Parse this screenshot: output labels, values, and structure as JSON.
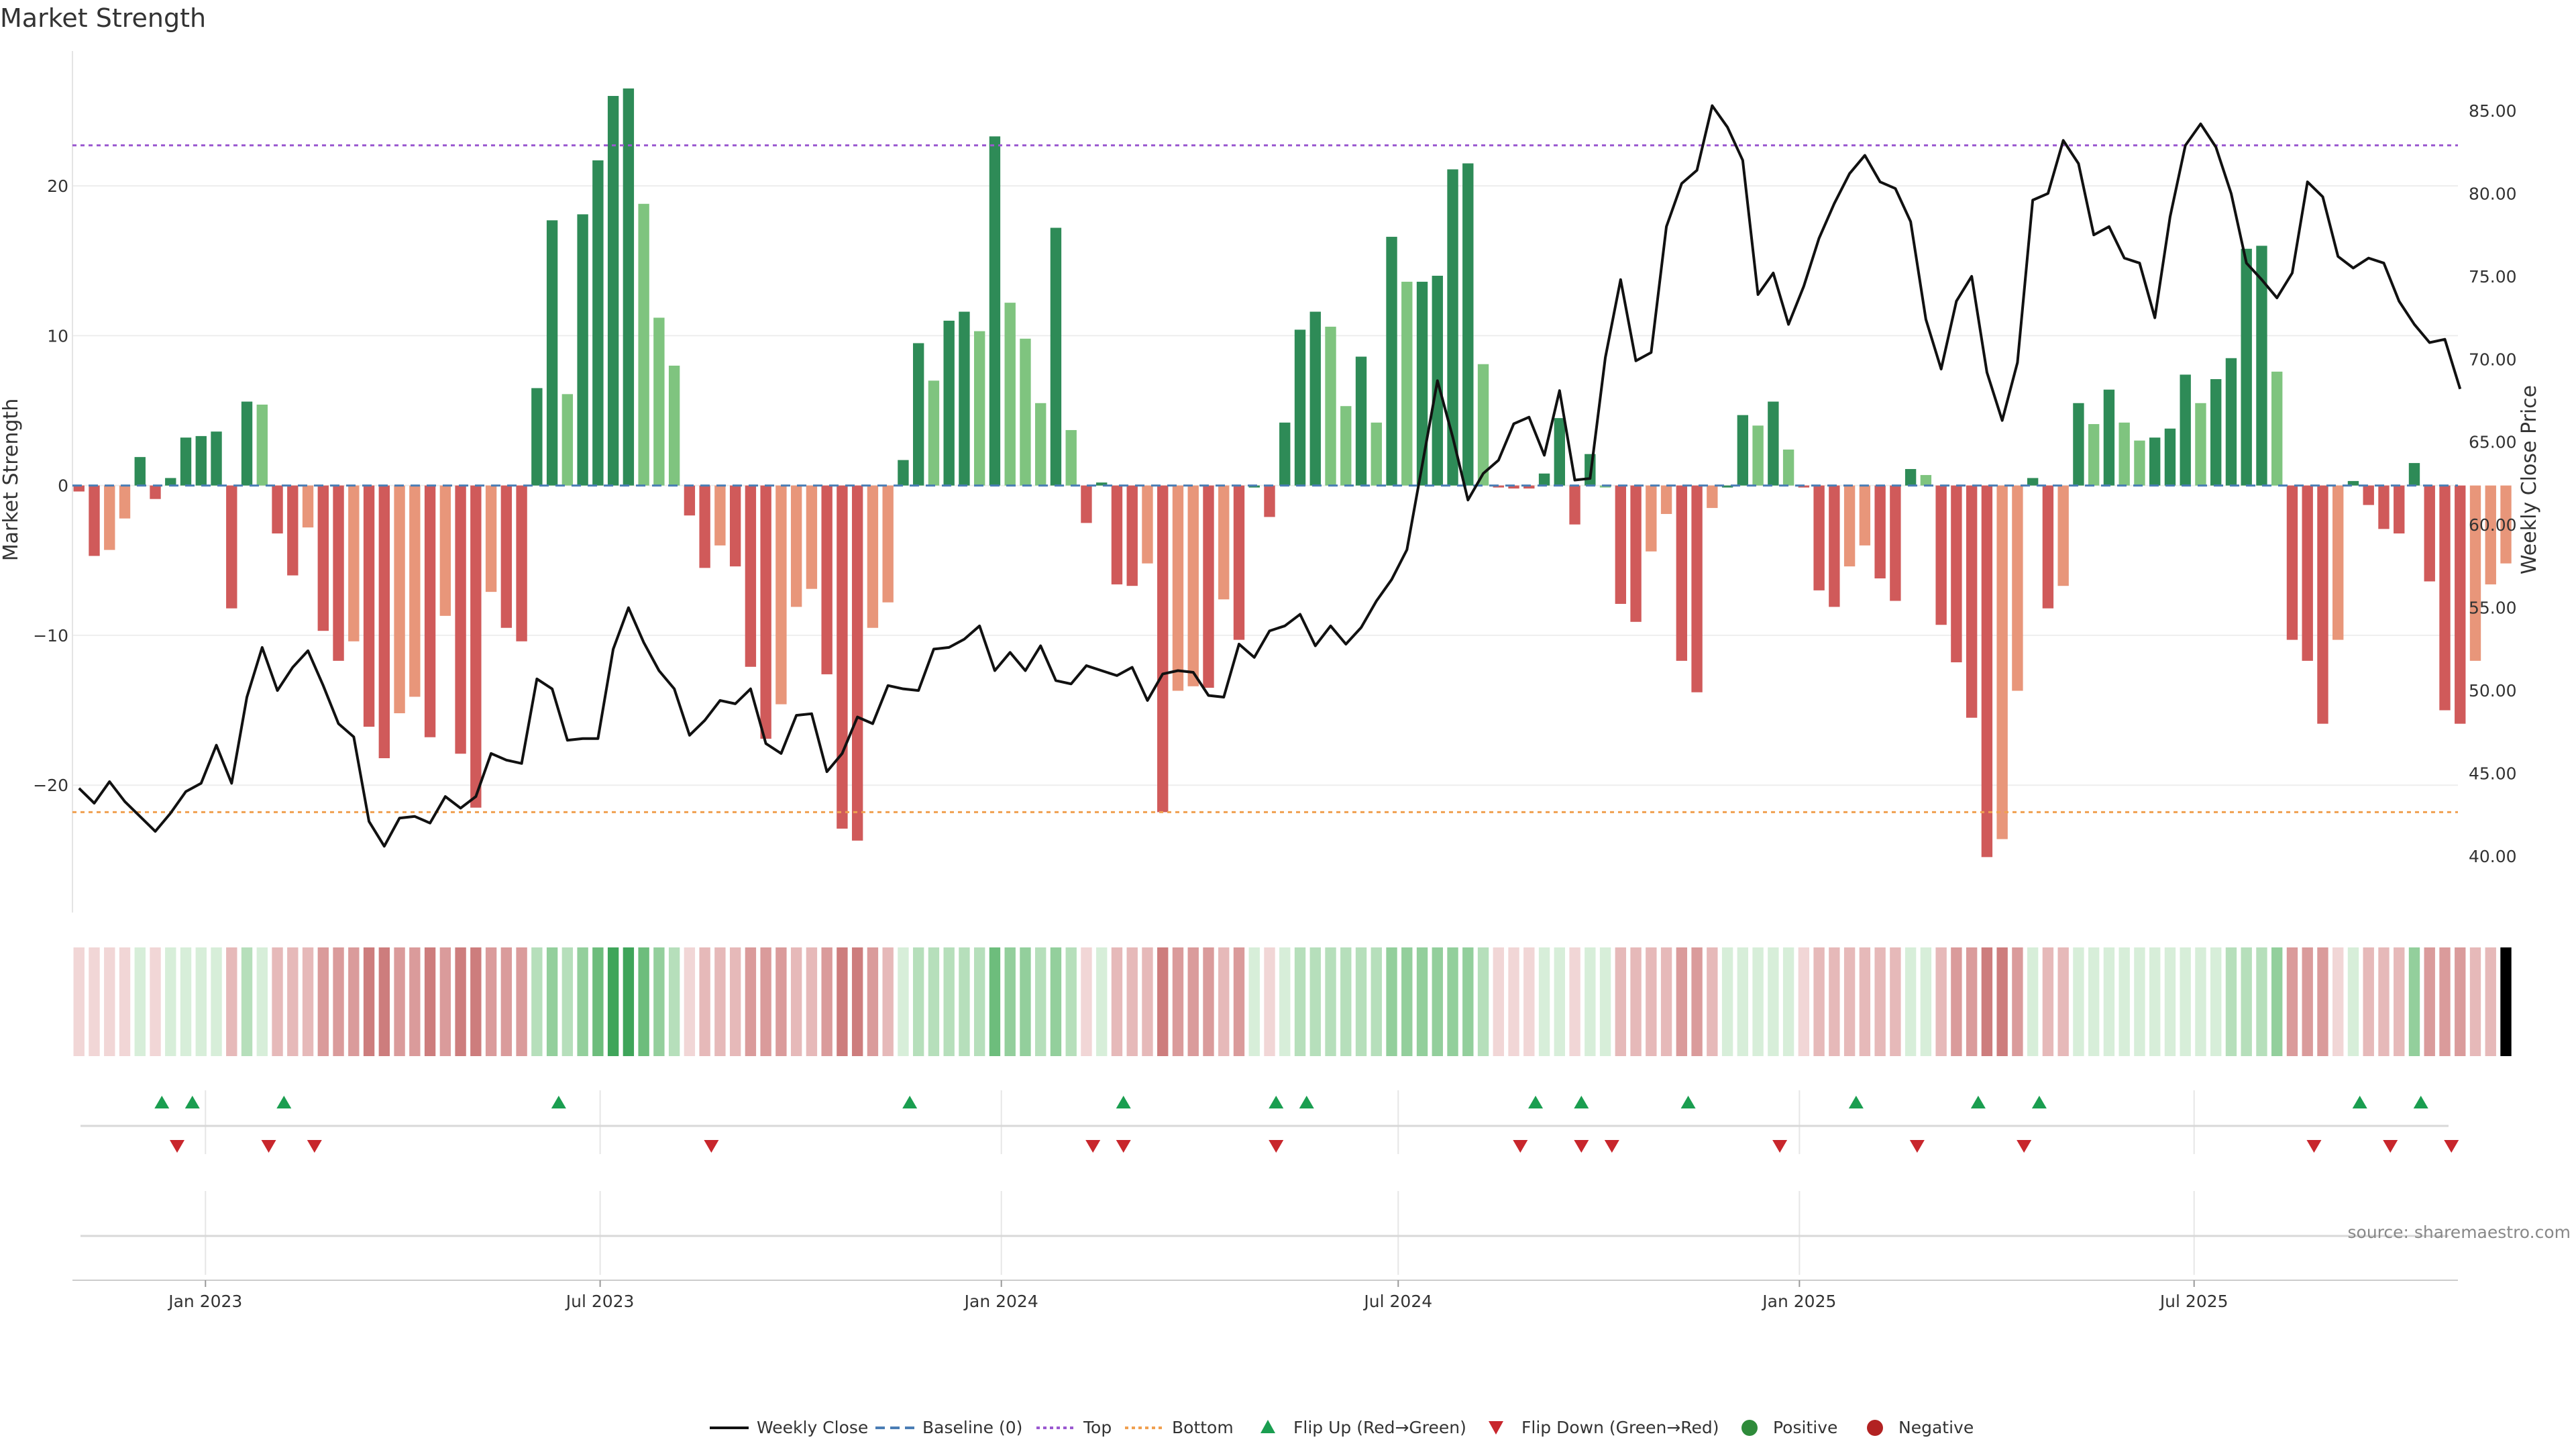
{
  "chart_data": {
    "type": "bar",
    "title": "Market Strength",
    "ylabel": "Market Strength",
    "y2label": "Weekly Close Price",
    "ylim": [
      -28.5,
      29
    ],
    "y2lim": [
      36.6,
      88.6
    ],
    "yticks": [
      -20,
      -10,
      0,
      10,
      20
    ],
    "yticklabels": [
      "−20",
      "−10",
      "0",
      "10",
      "20"
    ],
    "y2ticks": [
      40,
      45,
      50,
      55,
      60,
      65,
      70,
      75,
      80,
      85
    ],
    "y2ticklabels": [
      "40.00",
      "45.00",
      "50.00",
      "55.00",
      "60.00",
      "65.00",
      "70.00",
      "75.00",
      "80.00",
      "85.00"
    ],
    "top_line": 22.7,
    "bottom_line": -21.8,
    "start_date": "2022-11-04",
    "week_days": 7,
    "x_range": [
      "2022-11-01",
      "2025-10-30"
    ],
    "xticks": [
      {
        "date": "2023-01-01",
        "label": "Jan 2023"
      },
      {
        "date": "2023-07-01",
        "label": "Jul 2023"
      },
      {
        "date": "2024-01-01",
        "label": "Jan 2024"
      },
      {
        "date": "2024-07-01",
        "label": "Jul 2024"
      },
      {
        "date": "2025-01-01",
        "label": "Jan 2025"
      },
      {
        "date": "2025-07-01",
        "label": "Jul 2025"
      }
    ],
    "strength": [
      -0.4,
      -4.7,
      -4.3,
      -2.2,
      1.9,
      -0.9,
      0.5,
      3.2,
      3.3,
      3.6,
      -8.2,
      5.6,
      5.4,
      -3.2,
      -6.0,
      -2.8,
      -9.7,
      -11.7,
      -10.4,
      -16.1,
      -18.2,
      -15.2,
      -14.1,
      -16.8,
      -8.7,
      -17.9,
      -21.5,
      -7.1,
      -9.5,
      -10.4,
      6.5,
      17.7,
      6.1,
      18.1,
      21.7,
      26.0,
      26.5,
      18.8,
      11.2,
      8.0,
      -2.0,
      -5.5,
      -4.0,
      -5.4,
      -12.1,
      -16.9,
      -14.6,
      -8.1,
      -6.9,
      -12.6,
      -22.9,
      -23.7,
      -9.5,
      -7.8,
      1.7,
      9.5,
      7.0,
      11.0,
      11.6,
      10.3,
      23.3,
      12.2,
      9.8,
      5.5,
      17.2,
      3.7,
      -2.5,
      0.2,
      -6.6,
      -6.7,
      -5.2,
      -21.8,
      -13.7,
      -13.4,
      -13.5,
      -7.6,
      -10.3,
      0.0,
      -2.1,
      4.2,
      10.4,
      11.6,
      10.6,
      5.3,
      8.6,
      4.2,
      16.6,
      13.6,
      13.6,
      14.0,
      21.1,
      21.5,
      8.1,
      -0.1,
      -0.2,
      -0.2,
      0.8,
      4.5,
      -2.6,
      2.1,
      0.0,
      -7.9,
      -9.1,
      -4.4,
      -1.9,
      -11.7,
      -13.8,
      -1.5,
      0.0,
      4.7,
      4.0,
      5.6,
      2.4,
      -0.1,
      -7.0,
      -8.1,
      -5.4,
      -4.0,
      -6.2,
      -7.7,
      1.1,
      0.7,
      -9.3,
      -11.8,
      -15.5,
      -24.8,
      -23.6,
      -13.7,
      0.5,
      -8.2,
      -6.7,
      5.5,
      4.1,
      6.4,
      4.2,
      3.0,
      3.2,
      3.8,
      7.4,
      5.5,
      7.1,
      8.5,
      15.8,
      16.0,
      7.6,
      -10.3,
      -11.7,
      -15.9,
      -10.3,
      0.3,
      -1.3,
      -2.9,
      -3.2,
      1.5,
      -6.4,
      -15.0,
      -15.9,
      -11.7,
      -6.6,
      -5.2
    ],
    "close": [
      44.1,
      43.2,
      44.5,
      43.3,
      42.4,
      41.5,
      42.6,
      43.9,
      44.4,
      46.7,
      44.4,
      49.6,
      52.6,
      50.0,
      51.4,
      52.4,
      50.3,
      48.0,
      47.2,
      42.1,
      40.6,
      42.3,
      42.4,
      42.0,
      43.6,
      42.9,
      43.6,
      46.2,
      45.8,
      45.6,
      50.7,
      50.1,
      47.0,
      47.1,
      47.1,
      52.5,
      55.0,
      52.9,
      51.2,
      50.1,
      47.3,
      48.2,
      49.4,
      49.2,
      50.1,
      46.8,
      46.2,
      48.5,
      48.6,
      45.1,
      46.2,
      48.4,
      48.0,
      50.3,
      50.1,
      50.0,
      52.5,
      52.6,
      53.1,
      53.9,
      51.2,
      52.3,
      51.2,
      52.7,
      50.6,
      50.4,
      51.5,
      51.2,
      50.9,
      51.4,
      49.4,
      51.0,
      51.2,
      51.1,
      49.7,
      49.6,
      52.8,
      52.0,
      53.6,
      53.9,
      54.6,
      52.7,
      53.9,
      52.8,
      53.8,
      55.4,
      56.7,
      58.5,
      63.6,
      68.7,
      65.3,
      61.5,
      63.1,
      63.9,
      66.1,
      66.5,
      64.2,
      68.1,
      62.7,
      62.8,
      70.1,
      74.8,
      69.9,
      70.4,
      78.0,
      80.6,
      81.4,
      85.3,
      84.0,
      82.0,
      73.9,
      75.2,
      72.1,
      74.4,
      77.3,
      79.4,
      81.2,
      82.3,
      80.7,
      80.3,
      78.3,
      72.4,
      69.4,
      73.5,
      75.0,
      69.2,
      66.3,
      69.8,
      79.6,
      80.0,
      83.2,
      81.8,
      77.5,
      78.0,
      76.1,
      75.8,
      72.5,
      78.6,
      82.9,
      84.2,
      82.8,
      80.0,
      75.8,
      74.8,
      73.7,
      75.2,
      80.7,
      79.8,
      76.2,
      75.5,
      76.1,
      75.8,
      73.5,
      72.1,
      71.0,
      71.2,
      68.2
    ],
    "heat_intensity": [
      1,
      1,
      1,
      1,
      1,
      1,
      1,
      1,
      1,
      1,
      2,
      2,
      1,
      2,
      2,
      2,
      3,
      3,
      3,
      4,
      4,
      3,
      3,
      4,
      3,
      4,
      4,
      3,
      3,
      3,
      2,
      3,
      2,
      3,
      4,
      5,
      5,
      4,
      3,
      2,
      1,
      2,
      2,
      2,
      3,
      3,
      3,
      2,
      2,
      3,
      4,
      4,
      3,
      2,
      1,
      2,
      2,
      2,
      2,
      2,
      4,
      3,
      3,
      2,
      3,
      2,
      1,
      1,
      2,
      2,
      2,
      4,
      3,
      3,
      3,
      2,
      3,
      1,
      1,
      1,
      2,
      2,
      2,
      2,
      2,
      2,
      3,
      3,
      3,
      3,
      3,
      3,
      2,
      1,
      1,
      1,
      1,
      1,
      1,
      1,
      1,
      2,
      2,
      2,
      2,
      3,
      3,
      2,
      1,
      1,
      1,
      1,
      1,
      1,
      2,
      2,
      2,
      2,
      2,
      2,
      1,
      1,
      2,
      3,
      3,
      4,
      4,
      3,
      1,
      2,
      2,
      1,
      1,
      1,
      1,
      1,
      1,
      1,
      1,
      1,
      1,
      2,
      2,
      2,
      3,
      3,
      3,
      3,
      1,
      1,
      2,
      2,
      2,
      3,
      3,
      3,
      3,
      2,
      2
    ],
    "flip_up_dates": [
      "2022-12-12",
      "2022-12-26",
      "2023-02-06",
      "2023-06-12",
      "2023-11-20",
      "2024-02-26",
      "2024-05-06",
      "2024-05-20",
      "2024-09-02",
      "2024-09-23",
      "2024-11-11",
      "2025-01-27",
      "2025-03-24",
      "2025-04-21",
      "2025-09-15",
      "2025-10-13"
    ],
    "flip_down_dates": [
      "2022-12-19",
      "2023-01-30",
      "2023-02-20",
      "2023-08-21",
      "2024-02-12",
      "2024-02-26",
      "2024-05-06",
      "2024-08-26",
      "2024-09-23",
      "2024-10-07",
      "2024-12-23",
      "2025-02-24",
      "2025-04-14",
      "2025-08-25",
      "2025-09-29",
      "2025-10-27"
    ],
    "legend": [
      "Weekly Close",
      "Baseline (0)",
      "Top",
      "Bottom",
      "Flip Up (Red→Green)",
      "Flip Down (Green→Red)",
      "Positive",
      "Negative"
    ],
    "source": "source: sharemaestro.com"
  },
  "colors": {
    "pos_strong": "#2e8b57",
    "pos_weak": "#7fc47f",
    "neg_strong": "#d05a5a",
    "neg_weak": "#e8967a",
    "line": "#111111",
    "baseline": "#4a7db5",
    "top": "#9b59d0",
    "bottom": "#f0a050",
    "flip_up": "#1a9e50",
    "flip_down": "#c8262c",
    "positive_dot": "#2e8b3a",
    "negative_dot": "#b22222",
    "heat_pos": [
      "#d7eed9",
      "#b6dfbb",
      "#93cf9c",
      "#6dbd7c",
      "#3fa55a"
    ],
    "heat_neg": [
      "#f1d6d6",
      "#e6b9b9",
      "#da9b9b",
      "#cd7d7d",
      "#c05e5e"
    ],
    "grid": "#eeeeee"
  }
}
